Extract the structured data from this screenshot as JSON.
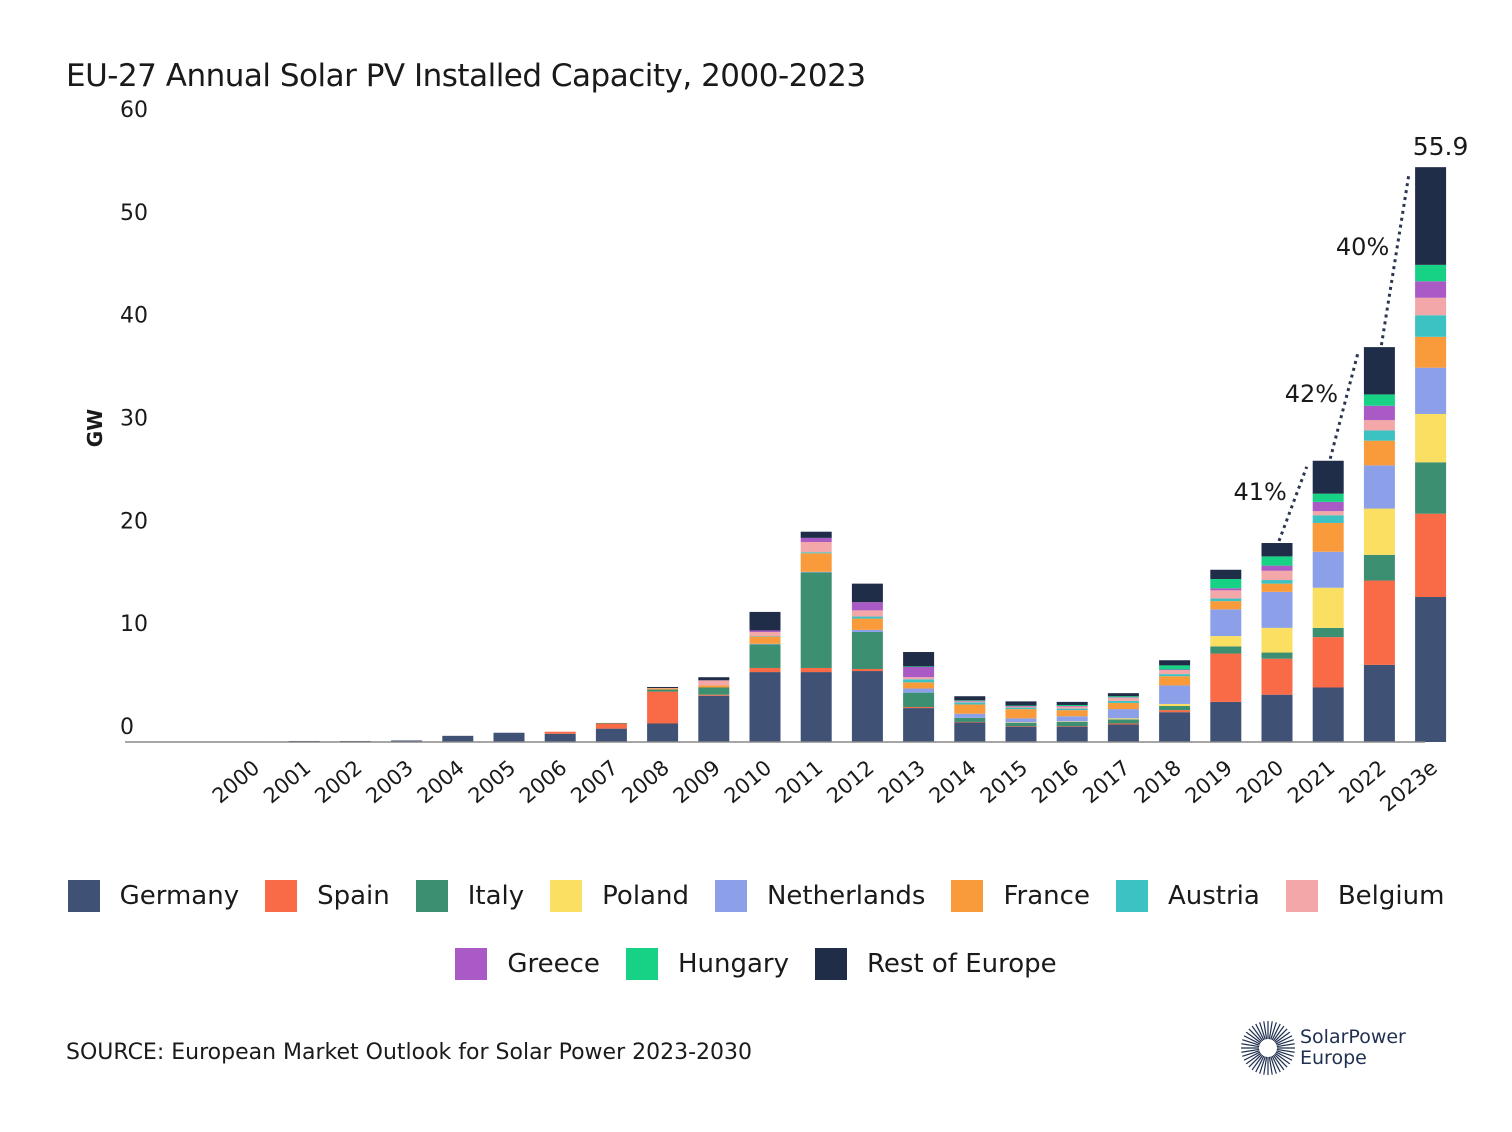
{
  "title": "EU-27 Annual Solar PV Installed Capacity, 2000-2023",
  "source": "SOURCE: European Market Outlook for Solar Power 2023-2030",
  "logo": {
    "line1": "SolarPower",
    "line2": "Europe",
    "icon": "sun-rays-icon"
  },
  "chart_data": {
    "type": "bar",
    "stacked": true,
    "ylabel": "GW",
    "ylim": [
      0,
      60
    ],
    "yticks": [
      0,
      10,
      20,
      30,
      40,
      50,
      60
    ],
    "grid": false,
    "legend_position": "bottom",
    "categories": [
      "2000",
      "2001",
      "2002",
      "2003",
      "2004",
      "2005",
      "2006",
      "2007",
      "2008",
      "2009",
      "2010",
      "2011",
      "2012",
      "2013",
      "2014",
      "2015",
      "2016",
      "2017",
      "2018",
      "2019",
      "2020",
      "2021",
      "2022",
      "2023e"
    ],
    "series": [
      {
        "name": "Germany",
        "color": "#3f5275",
        "values": [
          0.05,
          0.1,
          0.1,
          0.15,
          0.6,
          0.9,
          0.8,
          1.3,
          1.8,
          4.5,
          6.8,
          6.8,
          6.9,
          3.3,
          1.9,
          1.5,
          1.5,
          1.7,
          2.9,
          3.9,
          4.6,
          5.3,
          7.5,
          14.1
        ]
      },
      {
        "name": "Spain",
        "color": "#f96a47",
        "values": [
          0,
          0,
          0,
          0,
          0,
          0,
          0.2,
          0.5,
          3.1,
          0.1,
          0.4,
          0.4,
          0.2,
          0.1,
          0.05,
          0.05,
          0.05,
          0.1,
          0.2,
          4.7,
          3.5,
          4.9,
          8.2,
          8.1
        ]
      },
      {
        "name": "Italy",
        "color": "#3d8f71",
        "values": [
          0,
          0,
          0,
          0,
          0,
          0,
          0,
          0.05,
          0.2,
          0.7,
          2.3,
          9.3,
          3.6,
          1.4,
          0.4,
          0.3,
          0.4,
          0.4,
          0.4,
          0.7,
          0.6,
          0.9,
          2.5,
          5.0
        ]
      },
      {
        "name": "Poland",
        "color": "#fbdf63",
        "values": [
          0,
          0,
          0,
          0,
          0,
          0,
          0,
          0,
          0,
          0,
          0,
          0,
          0,
          0,
          0,
          0.05,
          0.05,
          0.1,
          0.2,
          1.0,
          2.4,
          3.9,
          4.5,
          4.7
        ]
      },
      {
        "name": "Netherlands",
        "color": "#8ba0e8",
        "values": [
          0,
          0,
          0,
          0,
          0,
          0,
          0,
          0,
          0,
          0,
          0.05,
          0.05,
          0.2,
          0.4,
          0.4,
          0.4,
          0.5,
          0.9,
          1.8,
          2.6,
          3.5,
          3.5,
          4.2,
          4.5
        ]
      },
      {
        "name": "France",
        "color": "#f99b3b",
        "values": [
          0,
          0,
          0,
          0,
          0,
          0,
          0,
          0,
          0.1,
          0.2,
          0.7,
          1.8,
          1.1,
          0.6,
          0.9,
          0.9,
          0.6,
          0.6,
          0.9,
          0.8,
          0.8,
          2.8,
          2.4,
          3.0
        ]
      },
      {
        "name": "Austria",
        "color": "#3cc2c2",
        "values": [
          0,
          0,
          0,
          0,
          0,
          0,
          0,
          0,
          0,
          0,
          0.05,
          0.1,
          0.2,
          0.3,
          0.2,
          0.15,
          0.15,
          0.2,
          0.2,
          0.25,
          0.35,
          0.75,
          1.0,
          2.1
        ]
      },
      {
        "name": "Belgium",
        "color": "#f4a7a9",
        "values": [
          0,
          0,
          0,
          0,
          0,
          0,
          0,
          0,
          0.05,
          0.5,
          0.4,
          1.0,
          0.6,
          0.2,
          0.1,
          0.1,
          0.2,
          0.3,
          0.4,
          0.8,
          0.9,
          0.4,
          1.0,
          1.7
        ]
      },
      {
        "name": "Greece",
        "color": "#aa5ac4",
        "values": [
          0,
          0,
          0,
          0,
          0,
          0,
          0,
          0,
          0,
          0,
          0.15,
          0.4,
          0.8,
          1.0,
          0.05,
          0.05,
          0.05,
          0.05,
          0.05,
          0.2,
          0.5,
          0.9,
          1.4,
          1.6
        ]
      },
      {
        "name": "Hungary",
        "color": "#17d185",
        "values": [
          0,
          0,
          0,
          0,
          0,
          0,
          0,
          0,
          0,
          0,
          0,
          0,
          0,
          0.05,
          0.05,
          0.05,
          0.1,
          0.1,
          0.4,
          0.9,
          0.9,
          0.8,
          1.1,
          1.6
        ]
      },
      {
        "name": "Rest of Europe",
        "color": "#1f2d48",
        "values": [
          0,
          0,
          0,
          0,
          0,
          0,
          0,
          0,
          0.1,
          0.3,
          1.8,
          0.6,
          1.8,
          1.4,
          0.4,
          0.4,
          0.3,
          0.3,
          0.5,
          0.9,
          1.3,
          3.2,
          4.6,
          9.5
        ]
      }
    ],
    "annotations": [
      {
        "label": "41%",
        "category": "2020"
      },
      {
        "label": "42%",
        "category": "2021"
      },
      {
        "label": "40%",
        "category": "2022"
      },
      {
        "label": "55.9",
        "category": "2023e"
      }
    ]
  }
}
